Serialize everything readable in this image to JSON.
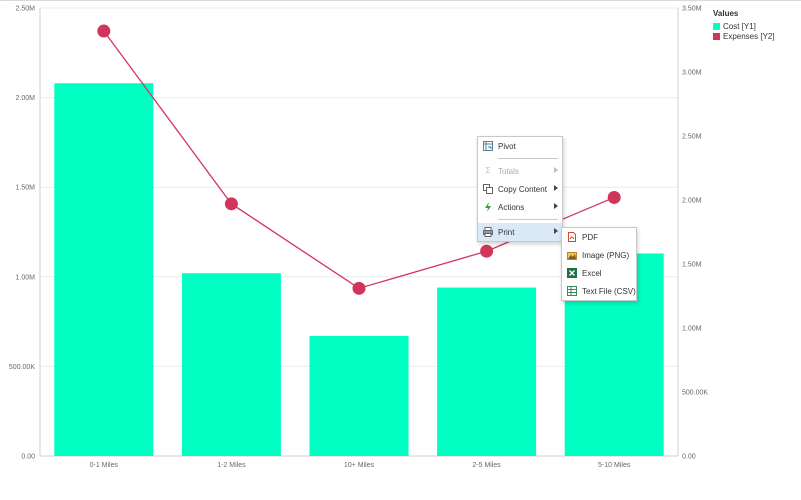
{
  "chart_data": {
    "type": "bar",
    "categories": [
      "0-1 Miles",
      "1-2 Miles",
      "10+ Miles",
      "2-5 Miles",
      "5-10 Miles"
    ],
    "series": [
      {
        "name": "Cost [Y1]",
        "type": "bar",
        "axis": "y1",
        "color": "#00ffc2",
        "values": [
          2080000,
          1020000,
          670000,
          940000,
          1130000
        ]
      },
      {
        "name": "Expenses [Y2]",
        "type": "line",
        "axis": "y2",
        "color": "#d1365a",
        "values": [
          3320000,
          1970000,
          1310000,
          1600000,
          2020000
        ]
      }
    ],
    "y1lim": [
      0,
      2500000
    ],
    "y2lim": [
      0,
      3500000
    ],
    "y1_ticks": [
      "0.00",
      "500.00K",
      "1.00M",
      "1.50M",
      "2.00M",
      "2.50M"
    ],
    "y2_ticks": [
      "0.00",
      "500.00K",
      "1.00M",
      "1.50M",
      "2.00M",
      "2.50M",
      "3.00M",
      "3.50M"
    ],
    "grid": true,
    "legend": {
      "title": "Values",
      "placement": "top-right"
    }
  },
  "context_menu": {
    "items": [
      {
        "label": "Pivot",
        "icon": "pivot-icon",
        "disabled": false,
        "submenu": false
      },
      {
        "label": "Totals",
        "icon": "sigma-icon",
        "disabled": true,
        "submenu": true
      },
      {
        "label": "Copy Content",
        "icon": "copy-icon",
        "disabled": false,
        "submenu": true
      },
      {
        "label": "Actions",
        "icon": "lightning-icon",
        "disabled": false,
        "submenu": true
      },
      {
        "label": "Print",
        "icon": "printer-icon",
        "disabled": false,
        "submenu": true
      }
    ],
    "print_submenu": [
      {
        "label": "PDF",
        "icon": "pdf-icon"
      },
      {
        "label": "Image (PNG)",
        "icon": "image-icon"
      },
      {
        "label": "Excel",
        "icon": "excel-icon"
      },
      {
        "label": "Text File (CSV)",
        "icon": "csv-icon"
      }
    ]
  }
}
